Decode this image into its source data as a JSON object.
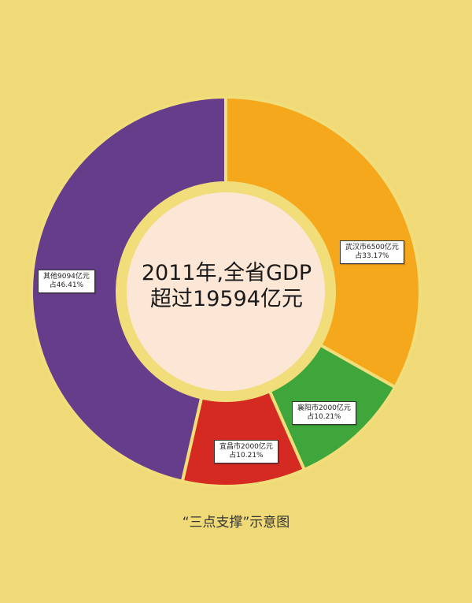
{
  "chart_data": {
    "type": "pie",
    "variant": "donut",
    "center_text_line1": "2011年,全省GDP",
    "center_text_line2": "超过19594亿元",
    "caption": "“三点支撑”示意图",
    "slices": [
      {
        "label_line1": "武汉市6500亿元",
        "label_line2": "占33.17%",
        "value": 33.17,
        "color": "#f5a81c"
      },
      {
        "label_line1": "襄阳市2000亿元",
        "label_line2": "占10.21%",
        "value": 10.21,
        "color": "#3ea63a"
      },
      {
        "label_line1": "宜昌市2000亿元",
        "label_line2": "占10.21%",
        "value": 10.21,
        "color": "#d42a22"
      },
      {
        "label_line1": "其他9094亿元",
        "label_line2": "占46.41%",
        "value": 46.41,
        "color": "#663d8a"
      }
    ],
    "colors": {
      "background": "#f0da77",
      "ring_gap": "#f1dd7a",
      "inner_circle": "#fce6d6"
    }
  }
}
